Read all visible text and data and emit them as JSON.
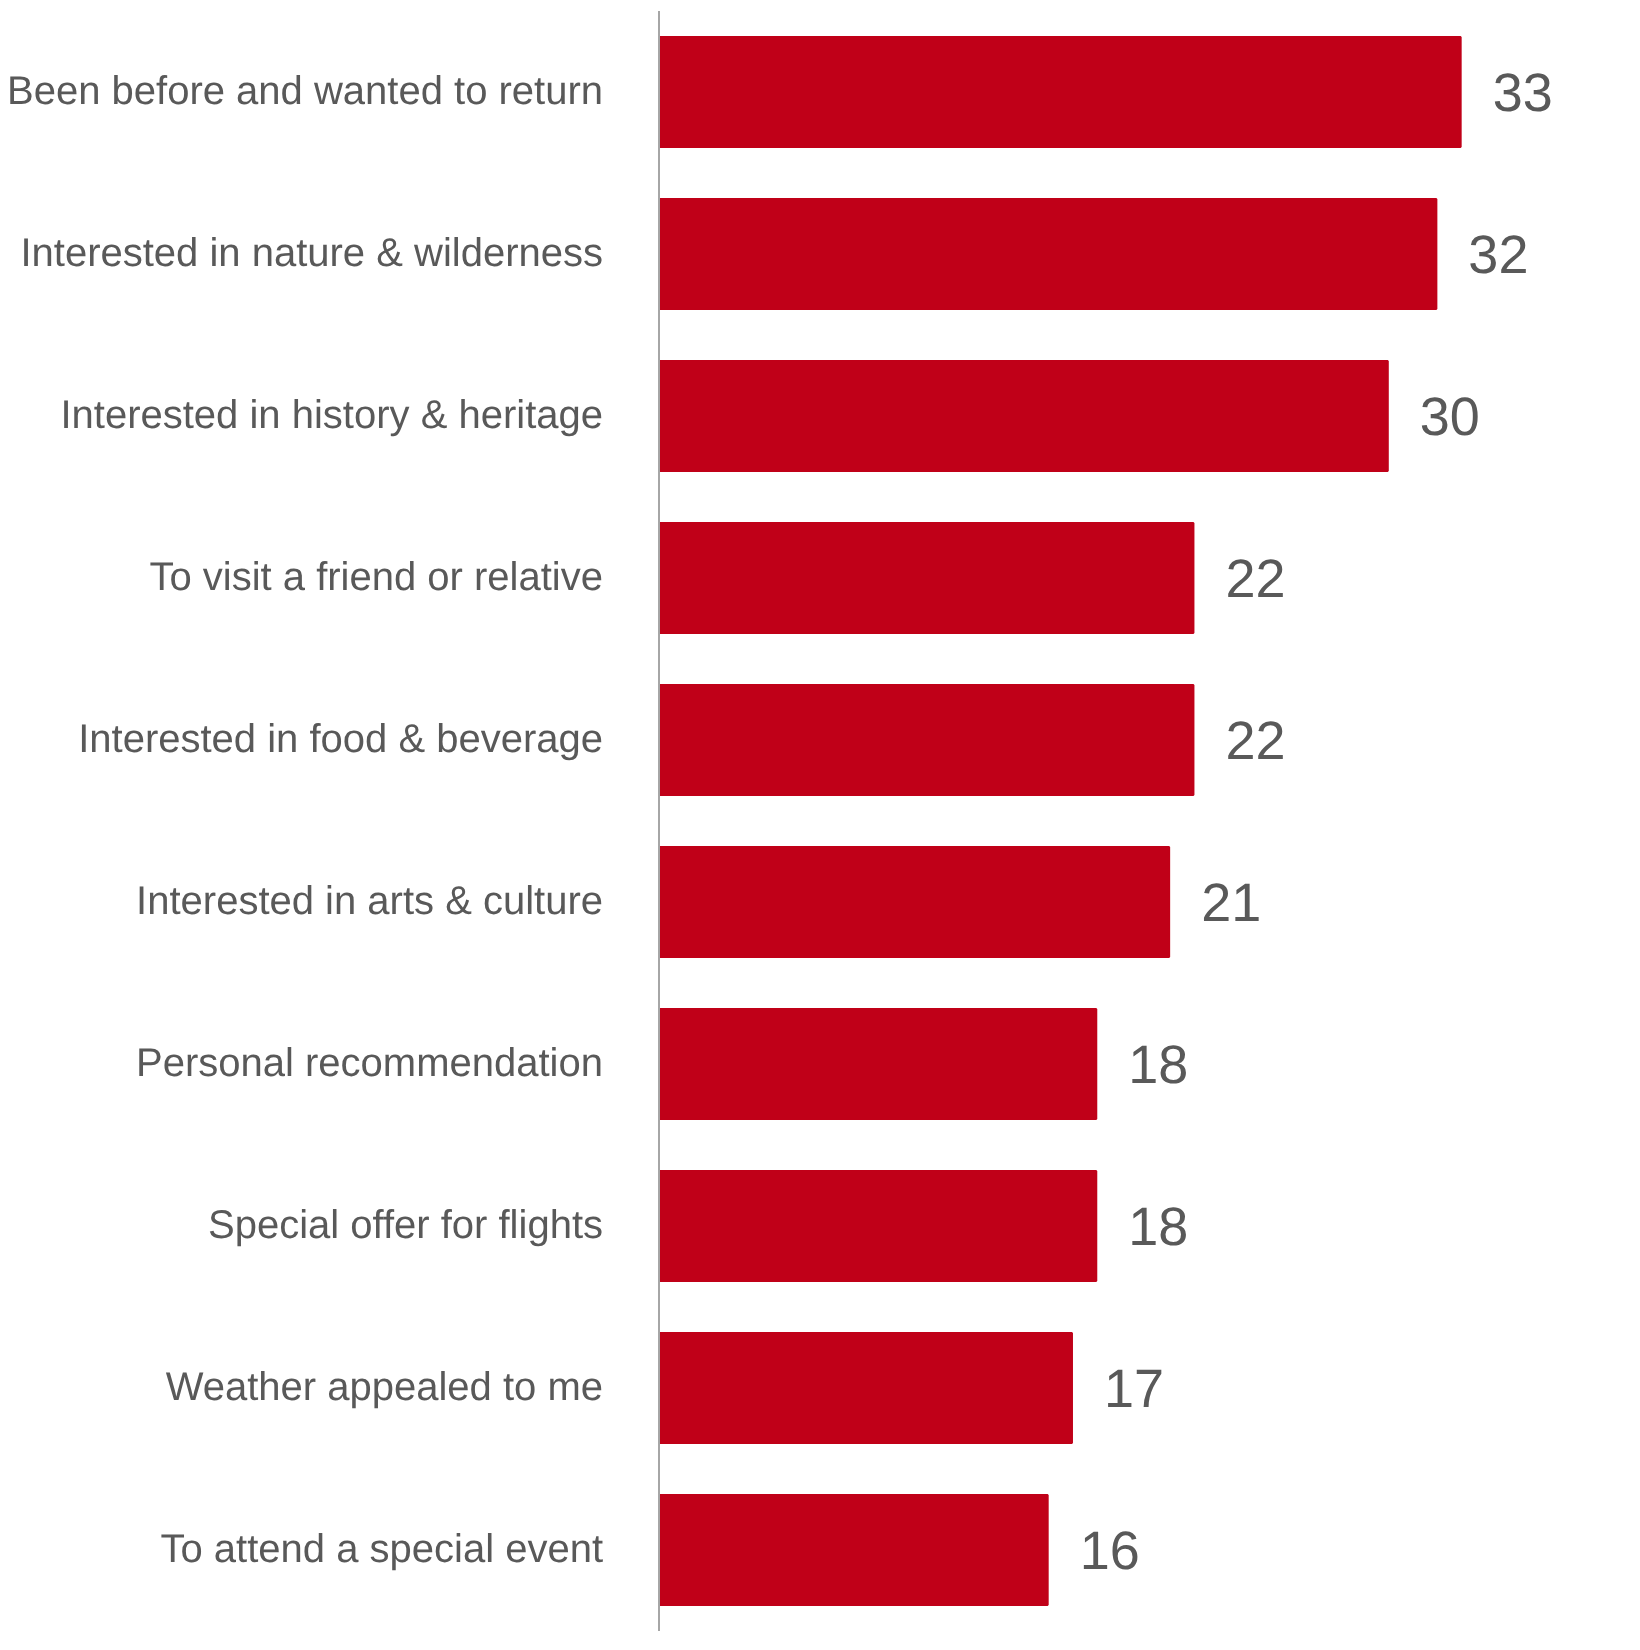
{
  "chart_data": {
    "type": "bar",
    "orientation": "horizontal",
    "data_labels": true,
    "tick_labels": "y",
    "categories": [
      "Been before and wanted to return",
      "Interested in nature & wilderness",
      "Interested in history & heritage",
      "To visit a friend or relative",
      "Interested in food & beverage",
      "Interested in arts & culture",
      "Personal recommendation",
      "Special offer for flights",
      "Weather appealed to me",
      "To attend a special event"
    ],
    "values": [
      33,
      32,
      30,
      22,
      22,
      21,
      18,
      18,
      17,
      16
    ],
    "color": "#c00018"
  }
}
